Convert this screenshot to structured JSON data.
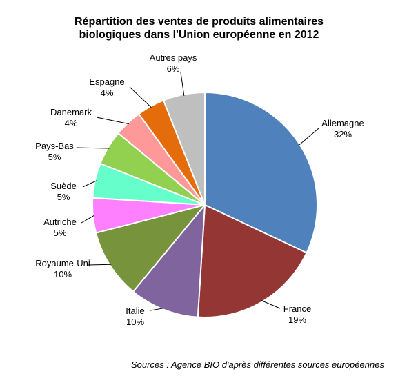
{
  "chart_data": {
    "type": "pie",
    "title_lines": [
      "Répartition des ventes de produits alimentaires",
      "biologiques dans l'Union européenne en 2012"
    ],
    "slices": [
      {
        "name": "Allemagne",
        "value": 32,
        "label": "32%",
        "color": "#4F81BD"
      },
      {
        "name": "France",
        "value": 19,
        "label": "19%",
        "color": "#943634"
      },
      {
        "name": "Italie",
        "value": 10,
        "label": "10%",
        "color": "#7F649E"
      },
      {
        "name": "Royaume-Uni",
        "value": 10,
        "label": "10%",
        "color": "#77933C"
      },
      {
        "name": "Autriche",
        "value": 5,
        "label": "5%",
        "color": "#FF80FF"
      },
      {
        "name": "Suède",
        "value": 5,
        "label": "5%",
        "color": "#66FFCC"
      },
      {
        "name": "Pays-Bas",
        "value": 5,
        "label": "5%",
        "color": "#92D050"
      },
      {
        "name": "Danemark",
        "value": 4,
        "label": "4%",
        "color": "#FF9999"
      },
      {
        "name": "Espagne",
        "value": 4,
        "label": "4%",
        "color": "#E46C0A"
      },
      {
        "name": "Autres pays",
        "value": 6,
        "label": "6%",
        "color": "#BFBFBF"
      }
    ],
    "source": "Sources : Agence BIO d'après différentes sources européennes"
  }
}
